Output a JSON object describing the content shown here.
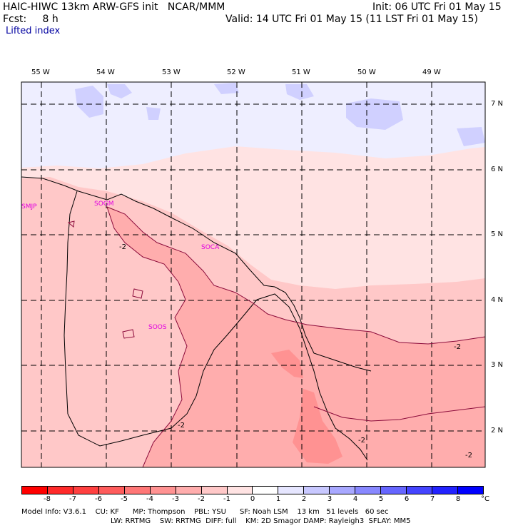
{
  "header": {
    "title": "HAIC-HIWC 13km ARW-GFS init   NCAR/MMM",
    "init": "Init: 06 UTC Fri 01 May 15",
    "fcst_label": "Fcst:     8 h",
    "valid": "Valid: 14 UTC Fri 01 May 15 (11 LST Fri 01 May 15)",
    "field": "Lifted index"
  },
  "axes": {
    "lon_labels": [
      "55 W",
      "54 W",
      "53 W",
      "52 W",
      "51 W",
      "50 W",
      "49 W"
    ],
    "lat_labels": [
      "7 N",
      "6 N",
      "5 N",
      "4 N",
      "3 N",
      "2 N"
    ]
  },
  "stations": [
    "SMJP",
    "SOGM",
    "SOCA",
    "SOOS"
  ],
  "contour_labels": [
    "-2",
    "-2",
    "-2",
    "-2",
    "-2"
  ],
  "colorbar": {
    "labels": [
      "-8",
      "-7",
      "-6",
      "-5",
      "-4",
      "-3",
      "-2",
      "-1",
      "0",
      "1",
      "2",
      "3",
      "4",
      "5",
      "6",
      "7",
      "8"
    ],
    "unit": "°C",
    "colors": [
      "#ff0000",
      "#ff2a2a",
      "#ff4040",
      "#ff5c5c",
      "#ff7777",
      "#ff9292",
      "#ffadad",
      "#ffc8c8",
      "#ffe3e3",
      "#ffffff",
      "#e6e6ff",
      "#c8c8ff",
      "#a8a8ff",
      "#8888ff",
      "#6666ff",
      "#4444ff",
      "#2222ff",
      "#0000ff"
    ]
  },
  "footer": {
    "line1": "Model Info: V3.6.1    CU: KF      MP: Thompson    PBL: YSU      SF: Noah LSM    13 km   51 levels   60 sec",
    "line2": "LW: RRTMG    SW: RRTMG  DIFF: full    KM: 2D Smagor DAMP: Rayleigh3  SFLAY: MM5"
  }
}
